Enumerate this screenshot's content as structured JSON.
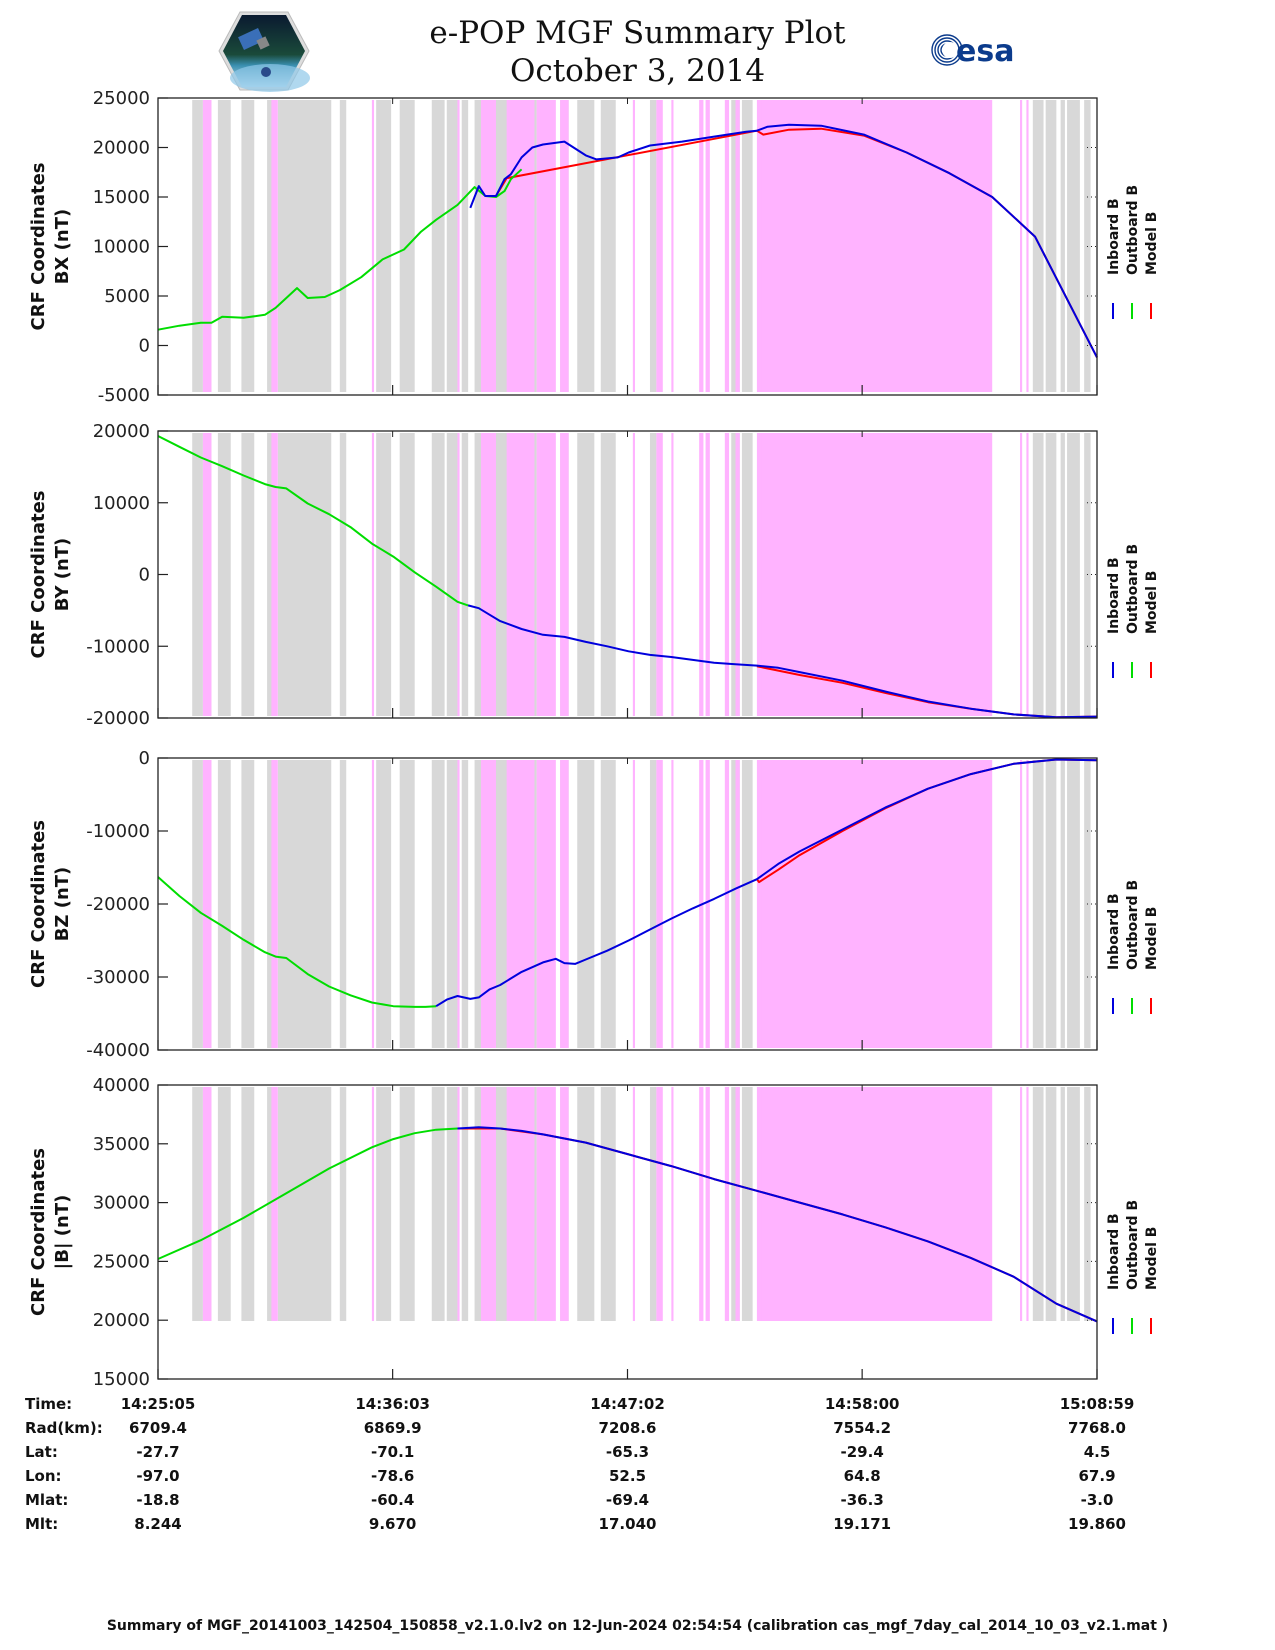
{
  "header": {
    "title_line1": "e-POP MGF Summary Plot",
    "title_line2": "October 3, 2014",
    "left_logo": "cassiope-mission-logo",
    "right_logo": "esa-logo",
    "right_logo_text": "esa"
  },
  "colors": {
    "inboard": "#0000dd",
    "outboard": "#00dd00",
    "model": "#ff0000",
    "gray_band": "#d8d8d8",
    "pink_band": "#ffb3ff"
  },
  "chart_data": {
    "type": "line",
    "x_unit": "minutes since 14:25:05",
    "x_range": [
      0,
      43.9
    ],
    "x_ticks_minutes": [
      0,
      10.97,
      21.95,
      32.92,
      43.9
    ],
    "legend": [
      "Inboard B",
      "Outboard B",
      "Model B"
    ],
    "legend_placement": "right",
    "gray_bands": [
      [
        1.6,
        2.1
      ],
      [
        2.3,
        2.5
      ],
      [
        2.8,
        3.4
      ],
      [
        3.9,
        4.5
      ],
      [
        5.1,
        5.4
      ],
      [
        5.6,
        8.1
      ],
      [
        8.5,
        8.8
      ],
      [
        10.2,
        10.9
      ],
      [
        11.3,
        12.0
      ],
      [
        12.8,
        13.4
      ],
      [
        13.5,
        14.0
      ],
      [
        14.2,
        14.5
      ],
      [
        14.8,
        17.2
      ],
      [
        17.4,
        17.7
      ],
      [
        17.8,
        18.3
      ],
      [
        18.8,
        19.2
      ],
      [
        19.6,
        20.4
      ],
      [
        20.7,
        21.4
      ],
      [
        23.0,
        23.3
      ],
      [
        26.8,
        27.2
      ],
      [
        27.3,
        27.8
      ],
      [
        28.2,
        28.7
      ],
      [
        31.0,
        31.6
      ],
      [
        31.7,
        32.1
      ],
      [
        32.3,
        32.5
      ],
      [
        32.6,
        33.3
      ],
      [
        33.4,
        33.7
      ],
      [
        35.0,
        35.4
      ],
      [
        35.5,
        35.8
      ],
      [
        35.9,
        36.1
      ],
      [
        36.4,
        36.6
      ],
      [
        38.0,
        38.4
      ],
      [
        40.9,
        41.4
      ],
      [
        41.5,
        42.0
      ],
      [
        42.2,
        42.4
      ],
      [
        42.5,
        43.1
      ],
      [
        43.3,
        43.6
      ]
    ],
    "pink_bands": [
      [
        2.1,
        2.5
      ],
      [
        5.3,
        5.6
      ],
      [
        10.0,
        10.1
      ],
      [
        14.0,
        14.1
      ],
      [
        15.1,
        15.8
      ],
      [
        16.3,
        17.6
      ],
      [
        17.7,
        18.6
      ],
      [
        18.8,
        19.2
      ],
      [
        22.2,
        22.3
      ],
      [
        23.3,
        23.6
      ],
      [
        24.0,
        24.1
      ],
      [
        25.3,
        25.5
      ],
      [
        25.6,
        25.8
      ],
      [
        26.5,
        26.7
      ],
      [
        27.0,
        27.2
      ],
      [
        28.0,
        28.3
      ],
      [
        28.2,
        39.0
      ],
      [
        40.3,
        40.4
      ],
      [
        40.6,
        40.7
      ]
    ],
    "panels": [
      {
        "name": "BX",
        "ylabel_line1": "CRF Coordinates",
        "ylabel_line2": "BX (nT)",
        "ylim": [
          -5000,
          25000
        ],
        "yticks": [
          -5000,
          0,
          5000,
          10000,
          15000,
          20000,
          25000
        ],
        "ytick_labels": [
          "-5000",
          "0",
          "5000",
          "10000",
          "15000",
          "20000",
          "25000"
        ],
        "outboard": {
          "x": [
            0,
            1,
            2,
            2.5,
            3,
            4,
            5,
            5.5,
            6,
            6.5,
            7,
            7.8,
            8.5,
            9.5,
            10.5,
            11.5,
            12.3,
            13,
            14,
            14.8,
            15.3,
            15.8,
            16.2,
            16.5,
            17
          ],
          "y": [
            1600,
            2000,
            2300,
            2300,
            2900,
            2800,
            3100,
            3800,
            4800,
            5800,
            4800,
            4900,
            5600,
            6900,
            8700,
            9700,
            11500,
            12700,
            14200,
            16000,
            15100,
            15000,
            15600,
            16800,
            17800
          ]
        },
        "inboard": {
          "x": [
            14.6,
            15.0,
            15.3,
            15.8,
            16.2,
            16.5,
            17.0,
            17.5,
            18.0,
            19.0,
            20.0,
            20.5,
            21.5,
            22.0,
            23.0,
            24.5,
            26.0,
            27.5,
            28.0,
            28.5,
            29.5,
            31,
            33,
            35,
            37,
            39,
            41,
            43.9
          ],
          "y": [
            13900,
            16100,
            15100,
            15100,
            16800,
            17300,
            19000,
            20000,
            20300,
            20600,
            19200,
            18800,
            19000,
            19500,
            20200,
            20600,
            21100,
            21600,
            21700,
            22100,
            22300,
            22200,
            21300,
            19500,
            17400,
            15000,
            11000,
            -1200
          ]
        },
        "model": {
          "x": [
            15.8,
            16.3,
            28.0,
            28.3,
            29.5,
            31,
            33,
            35,
            37,
            39,
            41,
            43.9
          ],
          "y": [
            15100,
            16900,
            21700,
            21300,
            21800,
            21900,
            21200,
            19500,
            17400,
            15000,
            11000,
            -1200
          ]
        }
      },
      {
        "name": "BY",
        "ylabel_line1": "CRF Coordinates",
        "ylabel_line2": "BY (nT)",
        "ylim": [
          -20000,
          20000
        ],
        "yticks": [
          -20000,
          -10000,
          0,
          10000,
          20000
        ],
        "ytick_labels": [
          "-20000",
          "-10000",
          "0",
          "10000",
          "20000"
        ],
        "outboard": {
          "x": [
            0,
            1,
            2,
            3,
            4,
            5,
            5.5,
            6,
            7,
            8,
            9,
            10,
            11,
            12,
            13,
            14,
            14.5
          ],
          "y": [
            19300,
            17800,
            16300,
            15100,
            13800,
            12600,
            12200,
            12000,
            9900,
            8400,
            6600,
            4300,
            2500,
            300,
            -1700,
            -3800,
            -4300
          ]
        },
        "inboard": {
          "x": [
            14.5,
            15,
            15.5,
            16,
            17,
            18,
            19,
            20,
            21,
            22,
            23,
            24,
            25,
            26,
            27,
            28,
            29,
            30,
            32,
            34,
            36,
            38,
            40,
            42,
            43.9
          ],
          "y": [
            -4300,
            -4700,
            -5600,
            -6500,
            -7600,
            -8400,
            -8700,
            -9400,
            -10000,
            -10700,
            -11200,
            -11500,
            -11900,
            -12300,
            -12500,
            -12700,
            -13000,
            -13600,
            -14800,
            -16300,
            -17700,
            -18700,
            -19500,
            -19900,
            -19800
          ]
        },
        "model": {
          "x": [
            28.0,
            29,
            30,
            32,
            34,
            36,
            38,
            40,
            42,
            43.9
          ],
          "y": [
            -12800,
            -13400,
            -14000,
            -15100,
            -16500,
            -17800,
            -18700,
            -19500,
            -19900,
            -19800
          ]
        }
      },
      {
        "name": "BZ",
        "ylabel_line1": "CRF Coordinates",
        "ylabel_line2": "BZ (nT)",
        "ylim": [
          -40000,
          0
        ],
        "yticks": [
          -40000,
          -30000,
          -20000,
          -10000,
          0
        ],
        "ytick_labels": [
          "-40000",
          "-30000",
          "-20000",
          "-10000",
          "0"
        ],
        "outboard": {
          "x": [
            0,
            1,
            2,
            3,
            4,
            5,
            5.5,
            6,
            7,
            8,
            9,
            10,
            11,
            12,
            12.5,
            13
          ],
          "y": [
            -16300,
            -18900,
            -21200,
            -23000,
            -24900,
            -26600,
            -27200,
            -27400,
            -29600,
            -31300,
            -32500,
            -33500,
            -34000,
            -34100,
            -34100,
            -34000
          ]
        },
        "inboard": {
          "x": [
            13,
            13.5,
            14,
            14.6,
            15,
            15.5,
            16,
            17,
            18,
            18.6,
            19,
            19.5,
            20,
            21,
            22,
            23,
            24,
            25,
            26,
            27,
            28,
            29,
            30,
            32,
            34,
            36,
            38,
            40,
            42,
            43.9
          ],
          "y": [
            -34000,
            -33100,
            -32600,
            -33000,
            -32800,
            -31700,
            -31100,
            -29300,
            -28000,
            -27500,
            -28100,
            -28200,
            -27600,
            -26400,
            -25000,
            -23500,
            -22000,
            -20600,
            -19300,
            -17900,
            -16600,
            -14500,
            -12800,
            -9800,
            -6800,
            -4200,
            -2200,
            -800,
            -200,
            -300
          ]
        },
        "model": {
          "x": [
            28.0,
            28.1,
            29,
            30,
            32,
            34,
            36,
            38,
            40,
            42,
            43.9
          ],
          "y": [
            -16600,
            -17000,
            -15300,
            -13300,
            -10000,
            -6900,
            -4200,
            -2200,
            -800,
            -200,
            -300
          ]
        }
      },
      {
        "name": "|B|",
        "ylabel_line1": "CRF Coordinates",
        "ylabel_line2": "|B| (nT)",
        "ylim": [
          15000,
          40000
        ],
        "yticks": [
          15000,
          20000,
          25000,
          30000,
          35000,
          40000
        ],
        "ytick_labels": [
          "15000",
          "20000",
          "25000",
          "30000",
          "35000",
          "40000"
        ],
        "outboard": {
          "x": [
            0,
            2,
            4,
            6,
            8,
            10,
            11,
            12,
            13,
            14
          ],
          "y": [
            25200,
            26800,
            28700,
            30800,
            32900,
            34700,
            35400,
            35900,
            36200,
            36300
          ]
        },
        "inboard": {
          "x": [
            14,
            15,
            16,
            17,
            18,
            20,
            22,
            24,
            26,
            28,
            30,
            32,
            34,
            36,
            38,
            40,
            42,
            43.9
          ],
          "y": [
            36300,
            36400,
            36300,
            36100,
            35800,
            35100,
            34100,
            33100,
            32000,
            31000,
            30000,
            29000,
            27900,
            26700,
            25300,
            23700,
            21400,
            19900
          ]
        },
        "model": {
          "x": [
            14,
            16,
            18,
            20,
            22,
            24,
            26,
            28,
            30,
            32,
            34,
            36,
            38,
            40,
            42,
            43.9
          ],
          "y": [
            36300,
            36300,
            35800,
            35100,
            34100,
            33100,
            32000,
            31000,
            30000,
            29000,
            27900,
            26700,
            25300,
            23700,
            21400,
            19900
          ]
        }
      }
    ]
  },
  "ephemeris": {
    "labels": [
      "Time:",
      "Rad(km):",
      "Lat:",
      "Lon:",
      "Mlat:",
      "Mlt:"
    ],
    "columns": [
      {
        "time": "14:25:05",
        "rad": "6709.4",
        "lat": "-27.7",
        "lon": "-97.0",
        "mlat": "-18.8",
        "mlt": "8.244"
      },
      {
        "time": "14:36:03",
        "rad": "6869.9",
        "lat": "-70.1",
        "lon": "-78.6",
        "mlat": "-60.4",
        "mlt": "9.670"
      },
      {
        "time": "14:47:02",
        "rad": "7208.6",
        "lat": "-65.3",
        "lon": "52.5",
        "mlat": "-69.4",
        "mlt": "17.040"
      },
      {
        "time": "14:58:00",
        "rad": "7554.2",
        "lat": "-29.4",
        "lon": "64.8",
        "mlat": "-36.3",
        "mlt": "19.171"
      },
      {
        "time": "15:08:59",
        "rad": "7768.0",
        "lat": "4.5",
        "lon": "67.9",
        "mlat": "-3.0",
        "mlt": "19.860"
      }
    ]
  },
  "footer": {
    "text": "Summary of MGF_20141003_142504_150858_v2.1.0.lv2 on 12-Jun-2024 02:54:54 (calibration cas_mgf_7day_cal_2014_10_03_v2.1.mat )"
  }
}
